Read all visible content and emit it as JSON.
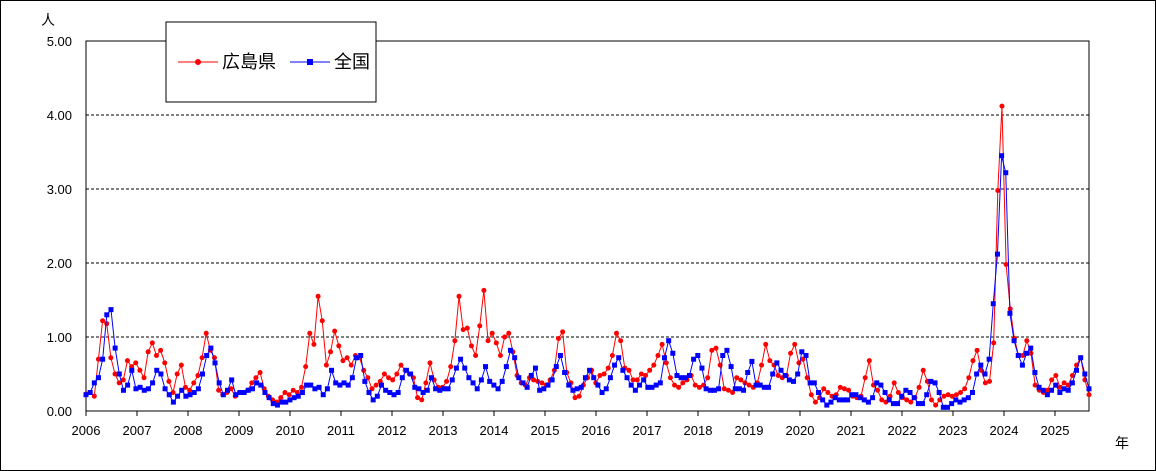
{
  "chart_data": {
    "type": "line",
    "ylabel": "人",
    "xlabel": "年",
    "ylim": [
      0,
      5
    ],
    "y_ticks": [
      "0.00",
      "1.00",
      "2.00",
      "3.00",
      "4.00",
      "5.00"
    ],
    "x_ticks": [
      "2006",
      "2007",
      "2008",
      "2009",
      "2010",
      "2011",
      "2012",
      "2013",
      "2014",
      "2015",
      "2016",
      "2017",
      "2018",
      "2019",
      "2020",
      "2021",
      "2022",
      "2023",
      "2024",
      "2025"
    ],
    "x_start_year": 2006,
    "x_end_year": 2025.667,
    "grid": "horizontal dashed",
    "legend_position": "top-left",
    "series": [
      {
        "name": "広島県",
        "color": "#ff0000",
        "marker": "circle",
        "values": [
          0.23,
          0.25,
          0.2,
          0.7,
          1.22,
          1.18,
          0.72,
          0.5,
          0.38,
          0.42,
          0.68,
          0.6,
          0.65,
          0.55,
          0.45,
          0.8,
          0.92,
          0.75,
          0.82,
          0.65,
          0.4,
          0.25,
          0.5,
          0.62,
          0.32,
          0.28,
          0.38,
          0.48,
          0.72,
          1.05,
          0.82,
          0.72,
          0.28,
          0.22,
          0.25,
          0.3,
          0.2,
          0.25,
          0.25,
          0.28,
          0.38,
          0.45,
          0.52,
          0.3,
          0.2,
          0.15,
          0.12,
          0.18,
          0.25,
          0.22,
          0.28,
          0.25,
          0.32,
          0.6,
          1.05,
          0.9,
          1.55,
          1.22,
          0.62,
          0.8,
          1.08,
          0.88,
          0.68,
          0.72,
          0.62,
          0.75,
          0.72,
          0.55,
          0.45,
          0.3,
          0.35,
          0.4,
          0.5,
          0.45,
          0.42,
          0.5,
          0.62,
          0.55,
          0.5,
          0.45,
          0.18,
          0.15,
          0.38,
          0.65,
          0.42,
          0.32,
          0.32,
          0.4,
          0.6,
          0.95,
          1.55,
          1.1,
          1.12,
          0.88,
          0.75,
          1.15,
          1.63,
          0.95,
          1.05,
          0.92,
          0.75,
          1.0,
          1.05,
          0.8,
          0.48,
          0.38,
          0.35,
          0.45,
          0.42,
          0.4,
          0.38,
          0.35,
          0.42,
          0.55,
          0.98,
          1.07,
          0.52,
          0.38,
          0.18,
          0.2,
          0.35,
          0.45,
          0.55,
          0.38,
          0.48,
          0.5,
          0.58,
          0.75,
          1.05,
          0.95,
          0.58,
          0.55,
          0.42,
          0.42,
          0.5,
          0.48,
          0.55,
          0.62,
          0.75,
          0.9,
          0.65,
          0.45,
          0.35,
          0.32,
          0.38,
          0.42,
          0.48,
          0.35,
          0.32,
          0.35,
          0.45,
          0.82,
          0.85,
          0.62,
          0.3,
          0.28,
          0.25,
          0.45,
          0.42,
          0.38,
          0.35,
          0.32,
          0.38,
          0.62,
          0.9,
          0.68,
          0.62,
          0.48,
          0.45,
          0.48,
          0.78,
          0.9,
          0.65,
          0.7,
          0.45,
          0.22,
          0.12,
          0.18,
          0.3,
          0.25,
          0.2,
          0.22,
          0.32,
          0.3,
          0.28,
          0.2,
          0.18,
          0.2,
          0.45,
          0.68,
          0.35,
          0.28,
          0.15,
          0.12,
          0.2,
          0.38,
          0.25,
          0.18,
          0.15,
          0.12,
          0.18,
          0.32,
          0.55,
          0.4,
          0.15,
          0.08,
          0.15,
          0.2,
          0.22,
          0.2,
          0.22,
          0.25,
          0.3,
          0.45,
          0.68,
          0.82,
          0.55,
          0.38,
          0.4,
          0.92,
          2.98,
          4.12,
          1.98,
          1.38,
          0.98,
          0.75,
          0.75,
          0.95,
          0.78,
          0.35,
          0.28,
          0.25,
          0.28,
          0.42,
          0.48,
          0.32,
          0.38,
          0.35,
          0.48,
          0.62,
          0.72,
          0.42,
          0.22
        ]
      },
      {
        "name": "全国",
        "color": "#0000ff",
        "marker": "square",
        "values": [
          0.22,
          0.25,
          0.38,
          0.45,
          0.7,
          1.3,
          1.37,
          0.85,
          0.5,
          0.28,
          0.35,
          0.55,
          0.3,
          0.32,
          0.28,
          0.3,
          0.38,
          0.55,
          0.5,
          0.3,
          0.22,
          0.12,
          0.2,
          0.28,
          0.2,
          0.22,
          0.25,
          0.3,
          0.5,
          0.75,
          0.85,
          0.65,
          0.38,
          0.22,
          0.28,
          0.42,
          0.22,
          0.25,
          0.25,
          0.28,
          0.3,
          0.38,
          0.35,
          0.25,
          0.18,
          0.1,
          0.08,
          0.12,
          0.12,
          0.15,
          0.18,
          0.2,
          0.25,
          0.35,
          0.35,
          0.3,
          0.32,
          0.22,
          0.3,
          0.55,
          0.38,
          0.35,
          0.38,
          0.35,
          0.45,
          0.72,
          0.75,
          0.4,
          0.25,
          0.15,
          0.2,
          0.35,
          0.28,
          0.25,
          0.22,
          0.25,
          0.45,
          0.55,
          0.5,
          0.32,
          0.3,
          0.25,
          0.28,
          0.45,
          0.3,
          0.28,
          0.3,
          0.3,
          0.42,
          0.58,
          0.7,
          0.58,
          0.45,
          0.38,
          0.3,
          0.42,
          0.6,
          0.4,
          0.35,
          0.3,
          0.4,
          0.6,
          0.82,
          0.72,
          0.45,
          0.38,
          0.32,
          0.48,
          0.58,
          0.28,
          0.3,
          0.35,
          0.42,
          0.6,
          0.75,
          0.52,
          0.35,
          0.28,
          0.3,
          0.32,
          0.45,
          0.55,
          0.45,
          0.35,
          0.25,
          0.3,
          0.45,
          0.62,
          0.72,
          0.55,
          0.45,
          0.35,
          0.28,
          0.35,
          0.42,
          0.32,
          0.32,
          0.35,
          0.38,
          0.72,
          0.95,
          0.78,
          0.48,
          0.45,
          0.45,
          0.48,
          0.7,
          0.75,
          0.58,
          0.3,
          0.28,
          0.28,
          0.3,
          0.75,
          0.82,
          0.6,
          0.3,
          0.3,
          0.28,
          0.52,
          0.67,
          0.35,
          0.35,
          0.32,
          0.32,
          0.5,
          0.65,
          0.55,
          0.48,
          0.42,
          0.4,
          0.5,
          0.8,
          0.75,
          0.38,
          0.38,
          0.25,
          0.15,
          0.08,
          0.12,
          0.18,
          0.15,
          0.15,
          0.15,
          0.22,
          0.22,
          0.18,
          0.15,
          0.12,
          0.18,
          0.38,
          0.35,
          0.25,
          0.15,
          0.1,
          0.1,
          0.2,
          0.28,
          0.25,
          0.18,
          0.1,
          0.1,
          0.22,
          0.4,
          0.38,
          0.25,
          0.05,
          0.05,
          0.1,
          0.15,
          0.12,
          0.15,
          0.18,
          0.25,
          0.5,
          0.62,
          0.5,
          0.7,
          1.45,
          2.12,
          3.45,
          3.22,
          1.32,
          0.95,
          0.75,
          0.62,
          0.78,
          0.85,
          0.52,
          0.32,
          0.28,
          0.22,
          0.28,
          0.35,
          0.25,
          0.3,
          0.28,
          0.38,
          0.55,
          0.72,
          0.5,
          0.3
        ]
      }
    ]
  }
}
